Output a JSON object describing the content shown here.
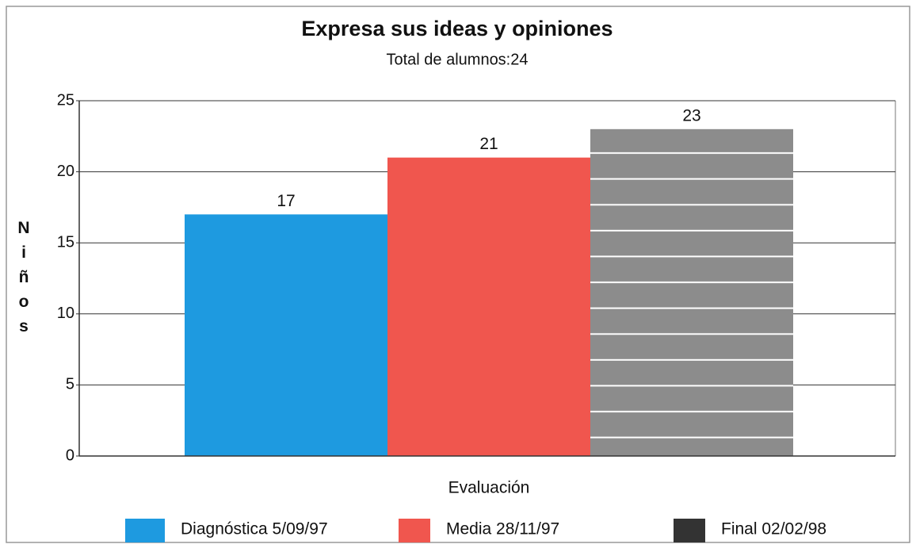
{
  "chart_data": {
    "type": "bar",
    "title": "Expresa sus ideas y opiniones",
    "subtitle": "Total de alumnos:24",
    "x_label": "Evaluación",
    "y_label": "Niños",
    "categories": [
      null
    ],
    "series": [
      {
        "name": "Diagnóstica 5/09/97",
        "color": "#1e9ae0",
        "values": [
          17
        ]
      },
      {
        "name": "Media 28/11/97",
        "color": "#f0564e",
        "values": [
          21
        ]
      },
      {
        "name": "Final 02/02/98",
        "color": "#8c8c8c",
        "values": [
          23
        ]
      }
    ],
    "ylim": [
      0,
      25
    ],
    "yticks": [
      0,
      5,
      10,
      15,
      20,
      25
    ],
    "grid": true,
    "legend": "bottom"
  }
}
